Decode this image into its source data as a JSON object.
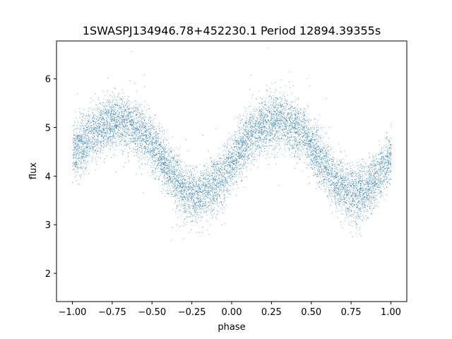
{
  "chart_data": {
    "type": "scatter",
    "title": "1SWASPJ134946.78+452230.1 Period 12894.39355s",
    "xlabel": "phase",
    "ylabel": "flux",
    "xlim": [
      -1.1,
      1.1
    ],
    "ylim": [
      1.42,
      6.78
    ],
    "xticks": [
      -1.0,
      -0.75,
      -0.5,
      -0.25,
      0.0,
      0.25,
      0.5,
      0.75,
      1.0
    ],
    "xtick_labels": [
      "−1.00",
      "−0.75",
      "−0.50",
      "−0.25",
      "0.00",
      "0.25",
      "0.50",
      "0.75",
      "1.00"
    ],
    "yticks": [
      2,
      3,
      4,
      5,
      6
    ],
    "ytick_labels": [
      "2",
      "3",
      "4",
      "5",
      "6"
    ],
    "grid": false,
    "marker_color": "#1f77b4",
    "series": [
      {
        "x": [
          -1.0,
          -0.95,
          -0.9,
          -0.85,
          -0.8,
          -0.75,
          -0.7,
          -0.65,
          -0.6,
          -0.55,
          -0.5,
          -0.45,
          -0.4,
          -0.35,
          -0.3,
          -0.25,
          -0.2,
          -0.15,
          -0.1,
          -0.05,
          0.0,
          0.05,
          0.1,
          0.15,
          0.2,
          0.25,
          0.3,
          0.35,
          0.4,
          0.45,
          0.5,
          0.55,
          0.6,
          0.65,
          0.7,
          0.75,
          0.8,
          0.85,
          0.9,
          0.95,
          1.0
        ],
        "y": [
          4.45,
          4.65,
          4.8,
          4.95,
          5.05,
          5.12,
          5.15,
          5.1,
          5.0,
          4.85,
          4.65,
          4.4,
          4.15,
          3.9,
          3.72,
          3.65,
          3.62,
          3.7,
          3.85,
          4.05,
          4.3,
          4.55,
          4.8,
          4.98,
          5.08,
          5.12,
          5.14,
          5.1,
          5.0,
          4.85,
          4.65,
          4.4,
          4.15,
          3.92,
          3.75,
          3.66,
          3.65,
          3.75,
          3.95,
          4.2,
          4.45
        ],
        "scatter_sd": 0.28,
        "approx_points": 9000
      }
    ]
  }
}
